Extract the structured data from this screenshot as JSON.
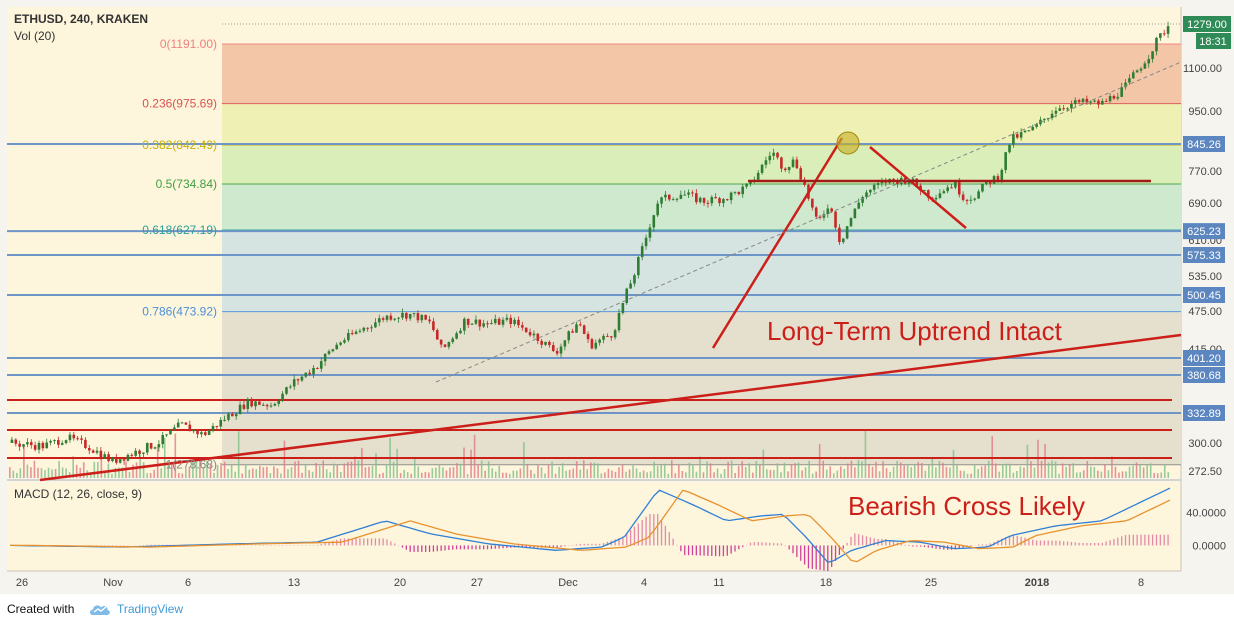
{
  "header": {
    "symbol_line": "ETHUSD, 240, KRAKEN",
    "volume_label": "Vol (20)"
  },
  "price_axis": {
    "current_price": "1279.00",
    "countdown": "18:31",
    "ticks": [
      "1100.00",
      "950.00",
      "770.00",
      "690.00",
      "610.00",
      "535.00",
      "475.00",
      "415.00",
      "300.00",
      "272.50"
    ],
    "marked_levels": [
      "845.26",
      "625.23",
      "575.33",
      "500.45",
      "401.20",
      "380.68",
      "332.89"
    ]
  },
  "fibonacci": [
    {
      "label": "0(1191.00)",
      "color": "#f08080"
    },
    {
      "label": "0.236(975.69)",
      "color": "#d9534f"
    },
    {
      "label": "0.382(842.49)",
      "color": "#c9b100"
    },
    {
      "label": "0.5(734.84)",
      "color": "#3fa13f"
    },
    {
      "label": "0.618(627.19)",
      "color": "#2aa198"
    },
    {
      "label": "0.786(473.92)",
      "color": "#4a90d9"
    },
    {
      "label": "1(278.68)",
      "color": "#888888"
    }
  ],
  "annotations": {
    "uptrend_text": "Long-Term Uptrend Intact",
    "macd_text": "Bearish Cross Likely"
  },
  "macd": {
    "label": "MACD (12, 26, close, 9)",
    "ticks": [
      "40.0000",
      "0.0000"
    ]
  },
  "time_axis": {
    "ticks": [
      "26",
      "Nov",
      "6",
      "13",
      "20",
      "27",
      "Dec",
      "4",
      "11",
      "18",
      "25",
      "2018",
      "8"
    ]
  },
  "footer": {
    "created_with": "Created with",
    "brand": "TradingView"
  },
  "colors": {
    "background": "#fdf5dc",
    "trendline": "#cc1f1a",
    "horizontal_level": "#6e95c8",
    "candle_up": "#2e7d32",
    "candle_down": "#c62828",
    "accent": "#3d9ad8"
  },
  "chart_data": {
    "type": "candlestick",
    "symbol": "ETHUSD",
    "interval": "240",
    "exchange": "KRAKEN",
    "price_range": [
      260,
      1290
    ],
    "last_price": 1279.0,
    "x_ticks": [
      "26",
      "Nov",
      "6",
      "13",
      "20",
      "27",
      "Dec",
      "4",
      "11",
      "18",
      "25",
      "2018",
      "8"
    ],
    "price_path": [
      [
        0,
        300
      ],
      [
        3,
        297
      ],
      [
        5,
        306
      ],
      [
        7,
        296
      ],
      [
        9,
        282
      ],
      [
        11,
        291
      ],
      [
        13,
        300
      ],
      [
        15,
        320
      ],
      [
        17,
        309
      ],
      [
        19,
        328
      ],
      [
        21,
        347
      ],
      [
        23,
        343
      ],
      [
        25,
        372
      ],
      [
        27,
        392
      ],
      [
        29,
        426
      ],
      [
        31,
        447
      ],
      [
        33,
        466
      ],
      [
        35,
        470
      ],
      [
        36,
        465
      ],
      [
        37,
        455
      ],
      [
        38,
        412
      ],
      [
        40,
        460
      ],
      [
        42,
        455
      ],
      [
        44,
        460
      ],
      [
        46,
        438
      ],
      [
        48,
        410
      ],
      [
        50,
        458
      ],
      [
        51,
        420
      ],
      [
        53,
        440
      ],
      [
        55,
        545
      ],
      [
        57,
        695
      ],
      [
        59,
        712
      ],
      [
        61,
        694
      ],
      [
        63,
        703
      ],
      [
        65,
        730
      ],
      [
        67,
        825
      ],
      [
        68,
        780
      ],
      [
        69,
        800
      ],
      [
        70,
        720
      ],
      [
        71,
        640
      ],
      [
        72,
        690
      ],
      [
        73,
        605
      ],
      [
        75,
        710
      ],
      [
        77,
        742
      ],
      [
        79,
        748
      ],
      [
        81,
        705
      ],
      [
        83,
        737
      ],
      [
        84,
        700
      ],
      [
        85,
        710
      ],
      [
        86,
        740
      ],
      [
        87,
        758
      ],
      [
        88,
        860
      ],
      [
        90,
        893
      ],
      [
        92,
        960
      ],
      [
        94,
        980
      ],
      [
        96,
        975
      ],
      [
        98,
        1030
      ],
      [
        100,
        1140
      ],
      [
        101,
        1215
      ],
      [
        102,
        1279
      ]
    ],
    "fibonacci_levels": [
      {
        "ratio": 0,
        "price": 1191.0
      },
      {
        "ratio": 0.236,
        "price": 975.69
      },
      {
        "ratio": 0.382,
        "price": 842.49
      },
      {
        "ratio": 0.5,
        "price": 734.84
      },
      {
        "ratio": 0.618,
        "price": 627.19
      },
      {
        "ratio": 0.786,
        "price": 473.92
      },
      {
        "ratio": 1,
        "price": 278.68
      }
    ],
    "horizontal_levels": [
      845.26,
      625.23,
      575.33,
      500.45,
      401.2,
      380.68,
      332.89
    ],
    "macd_range": [
      -30,
      75
    ],
    "macd_ticks": [
      40,
      0
    ],
    "macd_path": [
      [
        0,
        0
      ],
      [
        10,
        -2
      ],
      [
        20,
        2
      ],
      [
        27,
        4
      ],
      [
        33,
        30
      ],
      [
        37,
        14
      ],
      [
        42,
        2
      ],
      [
        48,
        -6
      ],
      [
        52,
        -2
      ],
      [
        54,
        10
      ],
      [
        57,
        68
      ],
      [
        60,
        50
      ],
      [
        63,
        30
      ],
      [
        66,
        36
      ],
      [
        68,
        38
      ],
      [
        70,
        10
      ],
      [
        72,
        -22
      ],
      [
        74,
        -6
      ],
      [
        77,
        6
      ],
      [
        80,
        4
      ],
      [
        83,
        -4
      ],
      [
        86,
        -2
      ],
      [
        88,
        12
      ],
      [
        92,
        24
      ],
      [
        96,
        30
      ],
      [
        99,
        50
      ],
      [
        102,
        70
      ]
    ]
  }
}
